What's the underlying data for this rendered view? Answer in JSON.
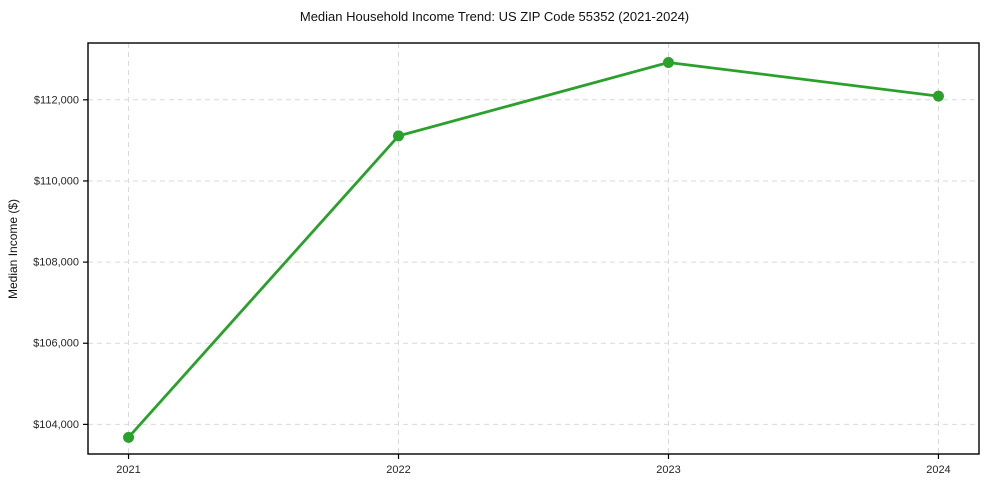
{
  "chart_data": {
    "type": "line",
    "title": "Median Household Income Trend: US ZIP Code 55352 (2021-2024)",
    "xlabel": "",
    "ylabel": "Median Income ($)",
    "categories": [
      "2021",
      "2022",
      "2023",
      "2024"
    ],
    "series": [
      {
        "name": "Median Household Income",
        "values": [
          103680,
          111110,
          112920,
          112090
        ]
      }
    ],
    "yticks": [
      104000,
      106000,
      108000,
      110000,
      112000
    ],
    "ytick_labels": [
      "$104,000",
      "$106,000",
      "$108,000",
      "$110,000",
      "$112,000"
    ],
    "ylim": [
      103270,
      113400
    ],
    "grid": true,
    "legend": "none",
    "line_color": "#2ca02c",
    "marker_color": "#2ca02c",
    "grid_color": "#d9d9d9",
    "axis_color": "#000000",
    "tick_text_color": "#262626"
  }
}
